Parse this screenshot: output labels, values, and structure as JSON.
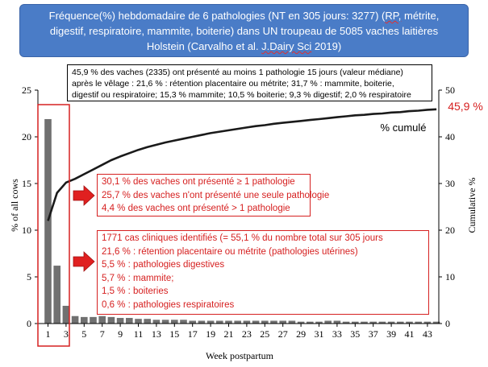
{
  "title": {
    "line1_a": "Fréquence(%) hebdomadaire de 6 pathologies (NT en 305 jours: 3277)  (",
    "line1_rp": "RP,",
    "line1_b": " métrite,",
    "line2": "digestif, respiratoire, mammite, boiterie) dans UN troupeau de 5085 vaches laitières",
    "line3_a": "Holstein (Carvalho et al. ",
    "line3_j": "J.Dairy Sci",
    "line3_b": " 2019)"
  },
  "summary": {
    "line1": "45,9 % des vaches (2335) ont présenté au moins 1 pathologie 15 jours (valeur médiane)",
    "line2": "après le vêlage : 21,6 % : rétention placentaire ou métrite;  31,7 % : mammite, boiterie,",
    "line3": "digestif ou respiratoire; 15,3 % mammite; 10,5 % boiterie; 9,3 % digestif; 2,0 % respiratoire"
  },
  "box_a": [
    "30,1 % des vaches ont présenté ≥ 1 pathologie",
    "25,7 % des vaches n'ont présenté une seule pathologie",
    "4,4 % des vaches ont présenté > 1 pathologie"
  ],
  "box_b": [
    "1771 cas cliniques identifiés (= 55,1 % du nombre  total sur 305 jours",
    "21,6 % : rétention placentaire ou métrite (pathologies utérines)",
    "5,5 % : pathologies digestives",
    "5,7 % : mammite;",
    "1,5 % : boiteries",
    "0,6 % : pathologies respiratoires"
  ],
  "colors": {
    "bar": "#707070",
    "line": "#1a1a1a",
    "annotation": "#d62020",
    "title_bg": "#4a7cc7",
    "arrow": "#e02020"
  },
  "chart_data": {
    "type": "bar",
    "title": "",
    "xlabel": "Week postpartum",
    "ylabel": "% of all cows",
    "y2label": "Cumulative %",
    "ylim": [
      0,
      25
    ],
    "y2lim": [
      0,
      50
    ],
    "yticks": [
      0,
      5,
      10,
      15,
      20,
      25
    ],
    "y2ticks": [
      0,
      10,
      20,
      30,
      40,
      50
    ],
    "xtick_labels": [
      1,
      3,
      5,
      7,
      9,
      11,
      13,
      15,
      17,
      19,
      21,
      23,
      25,
      27,
      29,
      31,
      33,
      35,
      37,
      39,
      41,
      43
    ],
    "x": [
      1,
      2,
      3,
      4,
      5,
      6,
      7,
      8,
      9,
      10,
      11,
      12,
      13,
      14,
      15,
      16,
      17,
      18,
      19,
      20,
      21,
      22,
      23,
      24,
      25,
      26,
      27,
      28,
      29,
      30,
      31,
      32,
      33,
      34,
      35,
      36,
      37,
      38,
      39,
      40,
      41,
      42,
      43,
      44
    ],
    "series": [
      {
        "axis": "left",
        "type": "bar",
        "values": [
          21.9,
          6.2,
          1.9,
          0.8,
          0.7,
          0.7,
          0.8,
          0.7,
          0.6,
          0.6,
          0.5,
          0.5,
          0.4,
          0.4,
          0.4,
          0.4,
          0.3,
          0.3,
          0.3,
          0.3,
          0.3,
          0.3,
          0.3,
          0.3,
          0.3,
          0.3,
          0.3,
          0.3,
          0.2,
          0.2,
          0.2,
          0.3,
          0.3,
          0.2,
          0.2,
          0.2,
          0.2,
          0.2,
          0.2,
          0.2,
          0.2,
          0.2,
          0.2,
          0.2
        ]
      },
      {
        "axis": "right",
        "type": "line",
        "name": "% cumulé",
        "values": [
          22.0,
          28.0,
          30.2,
          31.0,
          32.0,
          33.0,
          34.0,
          35.0,
          35.8,
          36.5,
          37.2,
          37.8,
          38.3,
          38.8,
          39.2,
          39.6,
          40.0,
          40.4,
          40.8,
          41.1,
          41.4,
          41.7,
          42.0,
          42.3,
          42.5,
          42.8,
          43.0,
          43.2,
          43.4,
          43.6,
          43.8,
          44.0,
          44.2,
          44.4,
          44.6,
          44.7,
          44.9,
          45.0,
          45.2,
          45.3,
          45.5,
          45.6,
          45.8,
          45.9
        ]
      }
    ],
    "end_label": "45,9 %",
    "highlight": "weeks 1-3"
  }
}
